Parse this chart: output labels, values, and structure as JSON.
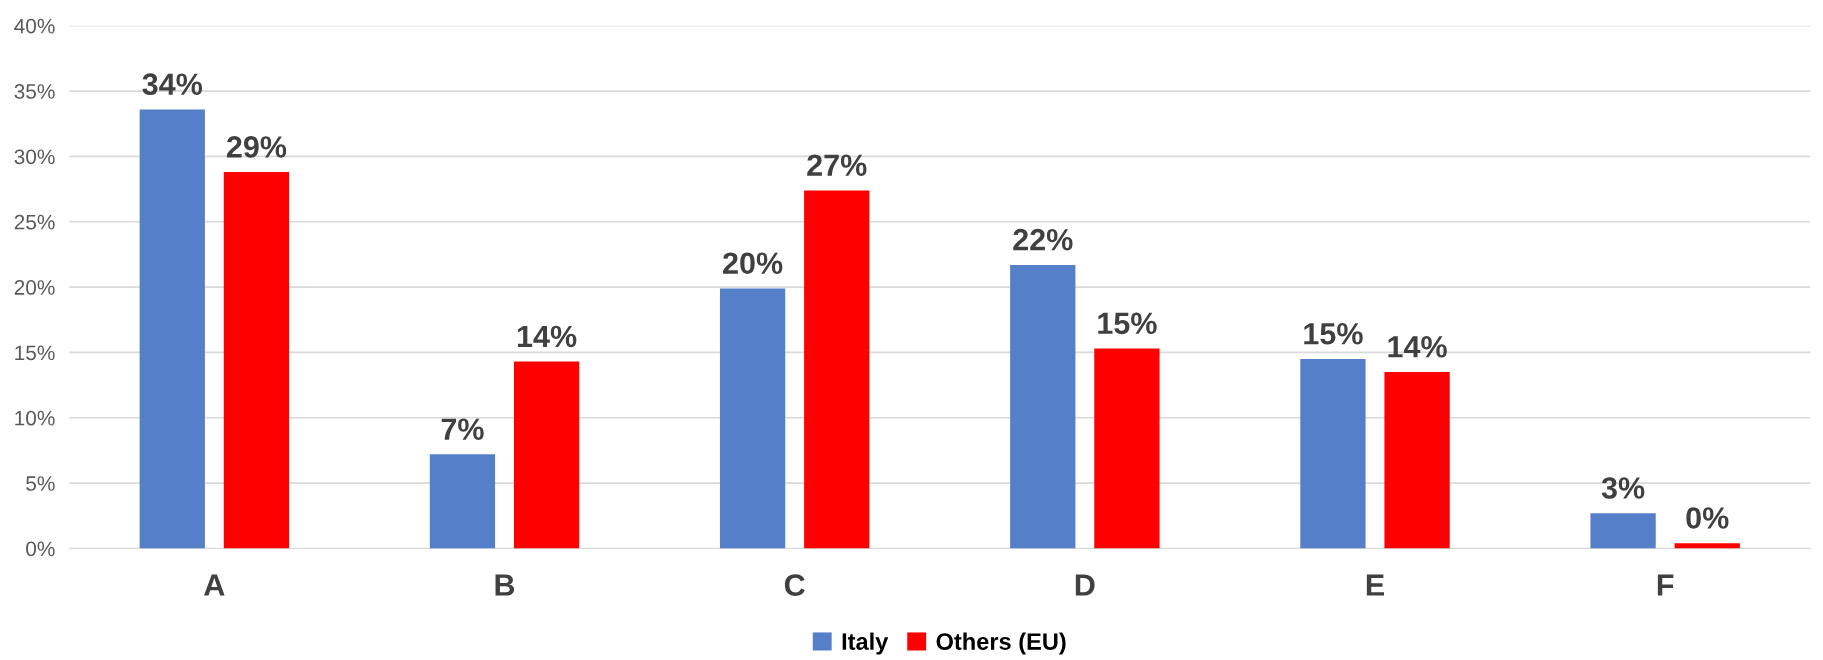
{
  "chart_data": {
    "type": "bar",
    "categories": [
      "A",
      "B",
      "C",
      "D",
      "E",
      "F"
    ],
    "series": [
      {
        "name": "Italy",
        "color": "#5580c9",
        "values": [
          33.6,
          7.2,
          19.9,
          21.7,
          14.5,
          2.7
        ],
        "value_labels": [
          "34%",
          "7%",
          "20%",
          "22%",
          "15%",
          "3%"
        ]
      },
      {
        "name": "Others (EU)",
        "color": "#ff0000",
        "values": [
          28.8,
          14.3,
          27.4,
          15.3,
          13.5,
          0.4
        ],
        "value_labels": [
          "29%",
          "14%",
          "27%",
          "15%",
          "14%",
          "0%"
        ]
      }
    ],
    "ylim": [
      0,
      40
    ],
    "yticks": [
      {
        "value": 0,
        "label": "0%"
      },
      {
        "value": 5,
        "label": "5%"
      },
      {
        "value": 10,
        "label": "10%"
      },
      {
        "value": 15,
        "label": "15%"
      },
      {
        "value": 20,
        "label": "20%"
      },
      {
        "value": 25,
        "label": "25%"
      },
      {
        "value": 30,
        "label": "30%"
      },
      {
        "value": 35,
        "label": "35%"
      },
      {
        "value": 40,
        "label": "40%"
      }
    ],
    "grid": "y",
    "legend": "bottom"
  }
}
